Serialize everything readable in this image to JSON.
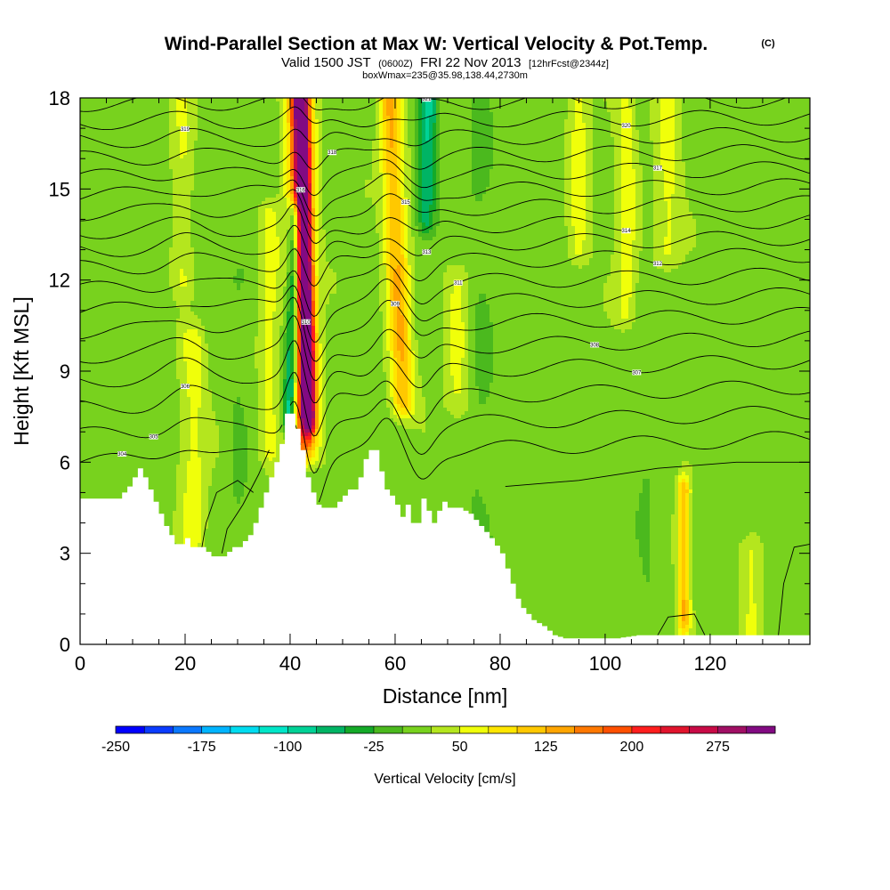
{
  "header": {
    "title": "Wind-Parallel Section at Max W: Vertical Velocity & Pot.Temp.",
    "copyright": "(C)",
    "valid_prefix": "Valid 1500 JST",
    "valid_z": "(0600Z)",
    "valid_date": "FRI 22 Nov 2013",
    "forecast": "[12hrFcst@2344z]",
    "box_info": "boxWmax=235@35.98,138.44,2730m"
  },
  "chart_data": {
    "type": "heatmap",
    "xlabel": "Distance [nm]",
    "ylabel": "Height [Kft MSL]",
    "xlim": [
      0,
      139
    ],
    "ylim": [
      0,
      18
    ],
    "x_ticks": [
      "0",
      "20",
      "40",
      "60",
      "80",
      "100",
      "120"
    ],
    "x_tick_values": [
      0,
      20,
      40,
      60,
      80,
      100,
      120
    ],
    "y_ticks": [
      "0",
      "3",
      "6",
      "9",
      "12",
      "15",
      "18"
    ],
    "y_tick_values": [
      0,
      3,
      6,
      9,
      12,
      15,
      18
    ],
    "terrain": {
      "x": [
        0,
        7,
        9,
        10,
        11,
        12,
        13,
        14,
        15,
        16,
        17,
        18,
        19,
        20,
        21,
        23,
        25,
        27,
        29,
        30,
        31,
        32,
        33,
        34,
        35,
        36,
        37,
        38,
        39,
        40,
        41,
        42,
        43,
        44,
        45,
        46,
        47,
        48,
        49,
        50,
        51,
        52,
        53,
        54,
        55,
        56,
        57,
        58,
        59,
        60,
        61,
        62,
        63,
        64,
        65,
        66,
        67,
        68,
        69,
        70,
        72,
        74,
        76,
        78,
        80,
        81,
        82,
        83,
        84,
        85,
        86,
        88,
        90,
        92,
        94,
        98,
        102,
        106,
        110,
        115,
        120,
        125,
        130,
        135,
        139
      ],
      "y": [
        4.8,
        4.8,
        5.2,
        5.5,
        5.8,
        5.5,
        5.1,
        4.7,
        4.3,
        3.9,
        3.6,
        3.3,
        3.3,
        3.5,
        3.2,
        3.2,
        2.9,
        2.9,
        3.2,
        3.2,
        3.4,
        3.6,
        4.0,
        4.5,
        5.0,
        5.5,
        6.0,
        6.6,
        7.6,
        7.6,
        7.1,
        6.4,
        5.5,
        5.0,
        4.6,
        4.5,
        4.5,
        4.5,
        4.7,
        4.9,
        5.1,
        5.1,
        5.5,
        6.1,
        6.4,
        6.4,
        5.7,
        5.1,
        4.9,
        4.6,
        4.2,
        4.6,
        4.0,
        4.0,
        4.8,
        4.4,
        4.0,
        4.4,
        4.7,
        4.5,
        4.5,
        4.3,
        3.9,
        3.5,
        3.0,
        2.5,
        2.0,
        1.5,
        1.2,
        1.0,
        0.8,
        0.6,
        0.3,
        0.2,
        0.2,
        0.2,
        0.2,
        0.3,
        0.3,
        0.3,
        0.3,
        0.3,
        0.3,
        0.3,
        0.3
      ]
    },
    "vertical_velocity_features": [
      {
        "x": 43.5,
        "x_at_top": 42.0,
        "w": 265,
        "width": 1.4,
        "ybot": 7.5,
        "ytop": 18
      },
      {
        "x": 42.6,
        "x_at_top": 41.8,
        "w": 150,
        "width": 2.6,
        "ybot": 6.5,
        "ytop": 18
      },
      {
        "x": 40.0,
        "x_at_top": 41.0,
        "w": -150,
        "width": 1.3,
        "ybot": 7.5,
        "ytop": 14
      },
      {
        "x": 61.5,
        "x_at_top": 59.0,
        "w": 110,
        "width": 2.2,
        "ybot": 8,
        "ytop": 18
      },
      {
        "x": 66.0,
        "x_at_top": 66.5,
        "w": -85,
        "width": 1.8,
        "ybot": 14,
        "ytop": 18
      },
      {
        "x": 21.5,
        "w": 45,
        "width": 2.5,
        "ybot": 3.5,
        "ytop": 10
      },
      {
        "x": 19.5,
        "w": 35,
        "width": 2.0,
        "ybot": 12,
        "ytop": 18
      },
      {
        "x": 115,
        "w": 110,
        "width": 1.2,
        "ybot": 0.8,
        "ytop": 5
      },
      {
        "x": 104,
        "w": 50,
        "width": 2.0,
        "ybot": 11,
        "ytop": 18
      },
      {
        "x": 112,
        "w": 45,
        "width": 2.5,
        "ybot": 13,
        "ytop": 18
      },
      {
        "x": 95,
        "w": 45,
        "width": 2.0,
        "ybot": 13,
        "ytop": 18
      },
      {
        "x": 128,
        "w": 45,
        "width": 2.0,
        "ybot": 0.5,
        "ytop": 3
      },
      {
        "x": 36,
        "w": 45,
        "width": 1.8,
        "ybot": 6.5,
        "ytop": 14
      },
      {
        "x": 72,
        "w": 40,
        "width": 2.5,
        "ybot": 8,
        "ytop": 12
      },
      {
        "x": 30,
        "w": -15,
        "width": 2.0,
        "ybot": 4,
        "ytop": 12
      },
      {
        "x": 76,
        "w": -18,
        "width": 3.0,
        "ybot": 3,
        "ytop": 18
      },
      {
        "x": 108,
        "w": -15,
        "width": 2.0,
        "ybot": 0.5,
        "ytop": 9
      }
    ],
    "background_w": 15,
    "theta_isentropes": {
      "start_heights": [
        6.0,
        6.9,
        7.8,
        8.7,
        9.5,
        10.3,
        11.0,
        11.7,
        12.4,
        13.0,
        13.6,
        14.2,
        14.8,
        15.4,
        16.0,
        16.6,
        17.2,
        17.8
      ],
      "labels": [
        "304",
        "305",
        "306",
        "307",
        "308",
        "309",
        "310",
        "311",
        "312",
        "313",
        "314",
        "315",
        "316",
        "317",
        "318",
        "319",
        "320",
        "321"
      ]
    },
    "colorbar": {
      "title": "Vertical Velocity [cm/s]",
      "tick_labels": [
        "-250",
        "-175",
        "-100",
        "-25",
        "50",
        "125",
        "200",
        "275"
      ],
      "min": -250,
      "max": 325,
      "step": 25,
      "colors": [
        "#0000ff",
        "#0a3cff",
        "#0a78ff",
        "#00b4ff",
        "#00dcf0",
        "#00e6c8",
        "#00d296",
        "#00b464",
        "#14aa28",
        "#4bb91e",
        "#78d21e",
        "#b4e61e",
        "#f0ff0a",
        "#ffe600",
        "#ffc800",
        "#ffa500",
        "#ff7800",
        "#ff5000",
        "#ff1e1e",
        "#e1142d",
        "#c80a46",
        "#a00f64",
        "#820a82"
      ]
    }
  }
}
